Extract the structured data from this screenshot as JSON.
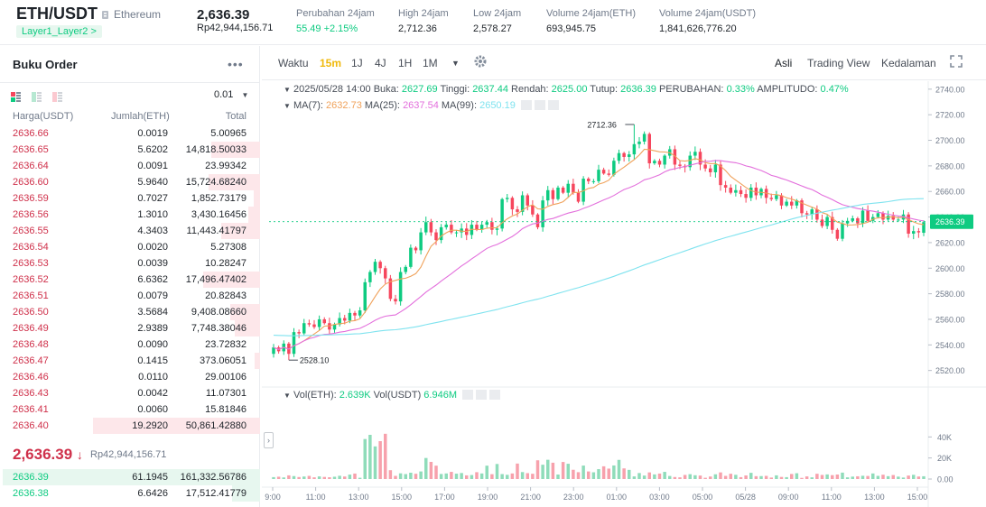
{
  "header": {
    "symbol": "ETH/USDT",
    "coin_name": "Ethereum",
    "tag": "Layer1_Layer2 >",
    "last_price": "2,636.39",
    "last_price_idr": "Rp42,944,156.71",
    "stats": [
      {
        "label": "Perubahan 24jam",
        "value": "55.49 +2.15%"
      },
      {
        "label": "High 24jam",
        "value": "2,712.36"
      },
      {
        "label": "Low 24jam",
        "value": "2,578.27"
      },
      {
        "label": "Volume 24jam(ETH)",
        "value": "693,945.75"
      },
      {
        "label": "Volume 24jam(USDT)",
        "value": "1,841,626,776.20"
      }
    ]
  },
  "orderbook": {
    "title": "Buku Order",
    "more": "•••",
    "precision": "0.01",
    "columns": [
      "Harga(USDT)",
      "Jumlah(ETH)",
      "Total"
    ],
    "asks": [
      {
        "price": "2636.66",
        "amount": "0.0019",
        "total": "5.00965",
        "depth": 0.0
      },
      {
        "price": "2636.65",
        "amount": "5.6202",
        "total": "14,818.50033",
        "depth": 0.29
      },
      {
        "price": "2636.64",
        "amount": "0.0091",
        "total": "23.99342",
        "depth": 0.0
      },
      {
        "price": "2636.60",
        "amount": "5.9640",
        "total": "15,724.68240",
        "depth": 0.31
      },
      {
        "price": "2636.59",
        "amount": "0.7027",
        "total": "1,852.73179",
        "depth": 0.04
      },
      {
        "price": "2636.56",
        "amount": "1.3010",
        "total": "3,430.16456",
        "depth": 0.07
      },
      {
        "price": "2636.55",
        "amount": "4.3403",
        "total": "11,443.41797",
        "depth": 0.23
      },
      {
        "price": "2636.54",
        "amount": "0.0020",
        "total": "5.27308",
        "depth": 0.0
      },
      {
        "price": "2636.53",
        "amount": "0.0039",
        "total": "10.28247",
        "depth": 0.0
      },
      {
        "price": "2636.52",
        "amount": "6.6362",
        "total": "17,496.47402",
        "depth": 0.34
      },
      {
        "price": "2636.51",
        "amount": "0.0079",
        "total": "20.82843",
        "depth": 0.0
      },
      {
        "price": "2636.50",
        "amount": "3.5684",
        "total": "9,408.08660",
        "depth": 0.18
      },
      {
        "price": "2636.49",
        "amount": "2.9389",
        "total": "7,748.38046",
        "depth": 0.15
      },
      {
        "price": "2636.48",
        "amount": "0.0090",
        "total": "23.72832",
        "depth": 0.0
      },
      {
        "price": "2636.47",
        "amount": "0.1415",
        "total": "373.06051",
        "depth": 0.01
      },
      {
        "price": "2636.46",
        "amount": "0.0110",
        "total": "29.00106",
        "depth": 0.0
      },
      {
        "price": "2636.43",
        "amount": "0.0042",
        "total": "11.07301",
        "depth": 0.0
      },
      {
        "price": "2636.41",
        "amount": "0.0060",
        "total": "15.81846",
        "depth": 0.0
      },
      {
        "price": "2636.40",
        "amount": "19.2920",
        "total": "50,861.42880",
        "depth": 1.0
      }
    ],
    "mid_price": "2,636.39",
    "mid_arrow": "↓",
    "mid_sub": "Rp42,944,156.71",
    "bids": [
      {
        "price": "2636.39",
        "amount": "61.1945",
        "total": "161,332.56786",
        "depth": 1.0
      },
      {
        "price": "2636.38",
        "amount": "6.6426",
        "total": "17,512.41779",
        "depth": 0.11
      }
    ]
  },
  "chart_toolbar": {
    "time_label": "Waktu",
    "intervals": [
      "15m",
      "1J",
      "4J",
      "1H",
      "1M"
    ],
    "active": "15m",
    "views": [
      "Asli",
      "Trading View",
      "Kedalaman"
    ]
  },
  "overlay": {
    "date": "2025/05/28 14:00",
    "open_label": "Buka:",
    "open": "2627.69",
    "high_label": "Tinggi:",
    "high": "2637.44",
    "low_label": "Rendah:",
    "low": "2625.00",
    "close_label": "Tutup:",
    "close": "2636.39",
    "change_label": "PERUBAHAN:",
    "change": "0.33%",
    "amp_label": "AMPLITUDO:",
    "amp": "0.47%",
    "ma7_label": "MA(7):",
    "ma7": "2632.73",
    "ma25_label": "MA(25):",
    "ma25": "2637.54",
    "ma99_label": "MA(99):",
    "ma99": "2650.19",
    "vol_label": "Vol(ETH):",
    "vol": "2.639K",
    "volu_label": "Vol(USDT)",
    "volu": "6.946M"
  },
  "colors": {
    "up": "#0ecb81",
    "down": "#f6465d",
    "ma7": "#f0a25b",
    "ma25": "#e36fdc",
    "ma99": "#7fe3ef"
  },
  "chart_data": {
    "type": "candlestick",
    "x_ticks": [
      "9:00",
      "11:00",
      "13:00",
      "15:00",
      "17:00",
      "19:00",
      "21:00",
      "23:00",
      "01:00",
      "03:00",
      "05:00",
      "05/28",
      "09:00",
      "11:00",
      "13:00",
      "15:00"
    ],
    "y_ticks": [
      "2740.00",
      "2720.00",
      "2700.00",
      "2680.00",
      "2660.00",
      "2640.00",
      "2620.00",
      "2600.00",
      "2580.00",
      "2560.00",
      "2540.00",
      "2520.00"
    ],
    "ylim": [
      2512,
      2742
    ],
    "vol_ticks": [
      "40K",
      "20K",
      "0.00"
    ],
    "vol_ylim": [
      0,
      42000
    ],
    "high_marker": "2712.36",
    "low_marker": "2528.10",
    "last_price_label": "2636.39",
    "close": [
      2538,
      2535,
      2541,
      2533,
      2550,
      2549,
      2557,
      2556,
      2554,
      2560,
      2557,
      2552,
      2556,
      2561,
      2559,
      2565,
      2563,
      2567,
      2589,
      2597,
      2605,
      2600,
      2592,
      2576,
      2574,
      2597,
      2601,
      2616,
      2614,
      2628,
      2636,
      2628,
      2622,
      2632,
      2634,
      2628,
      2628,
      2631,
      2626,
      2634,
      2630,
      2634,
      2636,
      2630,
      2631,
      2654,
      2655,
      2646,
      2644,
      2657,
      2649,
      2642,
      2632,
      2653,
      2661,
      2654,
      2663,
      2659,
      2666,
      2659,
      2652,
      2670,
      2668,
      2668,
      2677,
      2674,
      2673,
      2684,
      2690,
      2687,
      2689,
      2697,
      2699,
      2705,
      2682,
      2684,
      2681,
      2688,
      2693,
      2681,
      2680,
      2679,
      2688,
      2691,
      2681,
      2678,
      2675,
      2681,
      2665,
      2663,
      2659,
      2661,
      2658,
      2655,
      2663,
      2657,
      2662,
      2655,
      2654,
      2657,
      2649,
      2652,
      2649,
      2653,
      2643,
      2642,
      2646,
      2638,
      2633,
      2640,
      2630,
      2623,
      2635,
      2637,
      2639,
      2635,
      2645,
      2637,
      2640,
      2643,
      2638,
      2641,
      2638,
      2638,
      2642,
      2627,
      2629,
      2628,
      2636
    ],
    "volume": [
      1800,
      2200,
      1500,
      3500,
      2800,
      1900,
      2400,
      3000,
      1600,
      2500,
      2000,
      1700,
      2200,
      3100,
      2400,
      4200,
      5200,
      1200,
      38000,
      42000,
      31000,
      36000,
      43000,
      8400,
      3000,
      5400,
      4700,
      6000,
      5000,
      7200,
      20000,
      16300,
      12700,
      4800,
      5300,
      6800,
      5100,
      5700,
      3500,
      3800,
      6500,
      5300,
      12700,
      4600,
      14300,
      4700,
      4000,
      5300,
      14700,
      6600,
      5600,
      5000,
      17800,
      13600,
      18300,
      15500,
      4300,
      16200,
      14500,
      8800,
      6500,
      12800,
      7200,
      6400,
      9400,
      12100,
      9900,
      12900,
      18200,
      10100,
      8700,
      2500,
      5700,
      3300,
      6300,
      4400,
      5200,
      6800,
      2900,
      1900,
      1600,
      3900,
      4600,
      3600,
      3300,
      1200,
      2400,
      4500,
      6300,
      3000,
      5000,
      4000,
      1800,
      3400,
      5900,
      2700,
      2800,
      3000,
      1400,
      3500,
      2000,
      1800,
      4800,
      5500,
      1100,
      2500,
      1600,
      5000,
      3900,
      4400,
      3700,
      4300,
      6100,
      1600,
      2300,
      2600,
      3100,
      2900,
      5300,
      3000,
      4100,
      2700,
      3800,
      2300,
      1400,
      3300,
      4000,
      2400,
      2639
    ]
  }
}
